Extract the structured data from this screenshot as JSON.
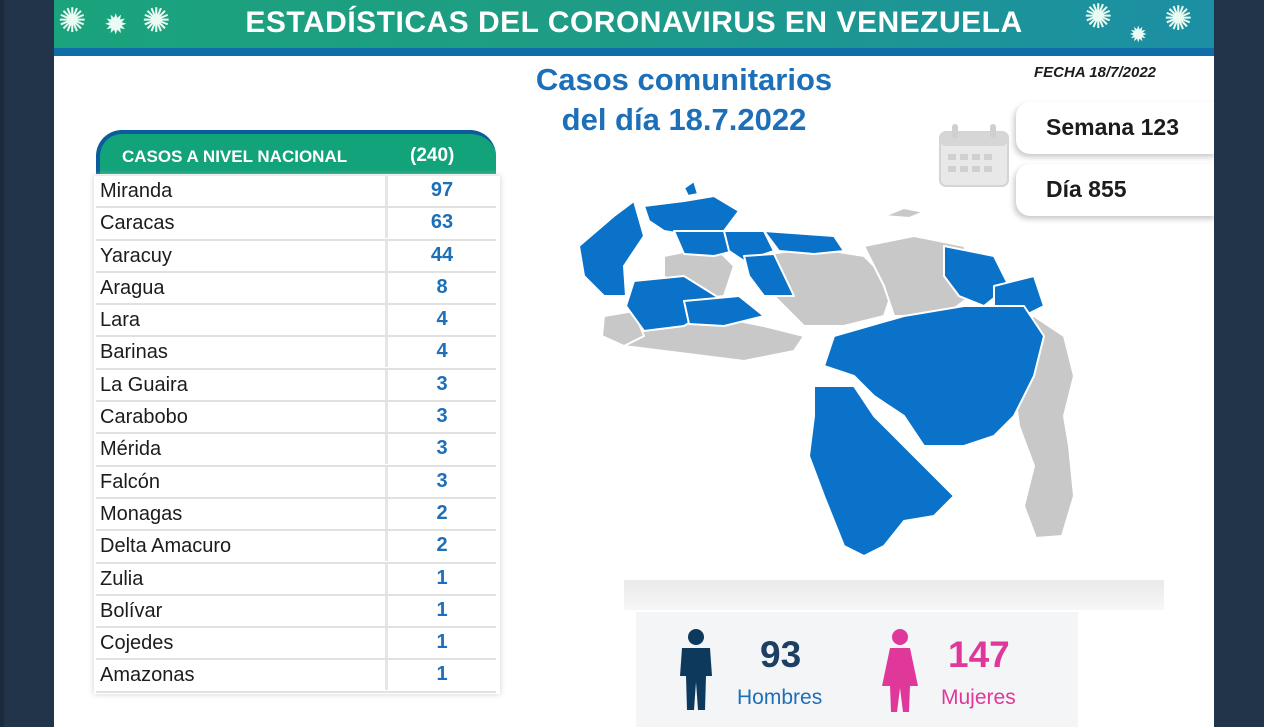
{
  "header": {
    "title": "ESTADÍSTICAS DEL CORONAVIRUS EN VENEZUELA",
    "subtitle_line1": "Casos comunitarios",
    "subtitle_line2": "del día 18.7.2022",
    "date_label": "FECHA 18/7/2022"
  },
  "table": {
    "title": "CASOS A NIVEL NACIONAL",
    "total": "(240)",
    "rows": [
      {
        "name": "Miranda",
        "value": "97"
      },
      {
        "name": "Caracas",
        "value": "63"
      },
      {
        "name": "Yaracuy",
        "value": "44"
      },
      {
        "name": "Aragua",
        "value": "8"
      },
      {
        "name": "Lara",
        "value": "4"
      },
      {
        "name": "Barinas",
        "value": "4"
      },
      {
        "name": "La Guaira",
        "value": "3"
      },
      {
        "name": "Carabobo",
        "value": "3"
      },
      {
        "name": "Mérida",
        "value": "3"
      },
      {
        "name": "Falcón",
        "value": "3"
      },
      {
        "name": "Monagas",
        "value": "2"
      },
      {
        "name": "Delta Amacuro",
        "value": "2"
      },
      {
        "name": "Zulia",
        "value": "1"
      },
      {
        "name": "Bolívar",
        "value": "1"
      },
      {
        "name": "Cojedes",
        "value": "1"
      },
      {
        "name": "Amazonas",
        "value": "1"
      }
    ]
  },
  "stats": {
    "semana": "Semana 123",
    "dia": "Día 855"
  },
  "gender": {
    "men_count": "93",
    "men_label": "Hombres",
    "women_count": "147",
    "women_label": "Mujeres"
  },
  "colors": {
    "banner_green": "#12a37a",
    "title_blue": "#1d6fb8",
    "map_blue": "#0a72c8",
    "map_gray": "#c8c8c8",
    "women_pink": "#e0389a",
    "men_navy": "#0d3a5c"
  },
  "icons": {
    "calendar": "calendar-icon",
    "man": "man-icon",
    "woman": "woman-icon",
    "virus": "virus-icon"
  }
}
